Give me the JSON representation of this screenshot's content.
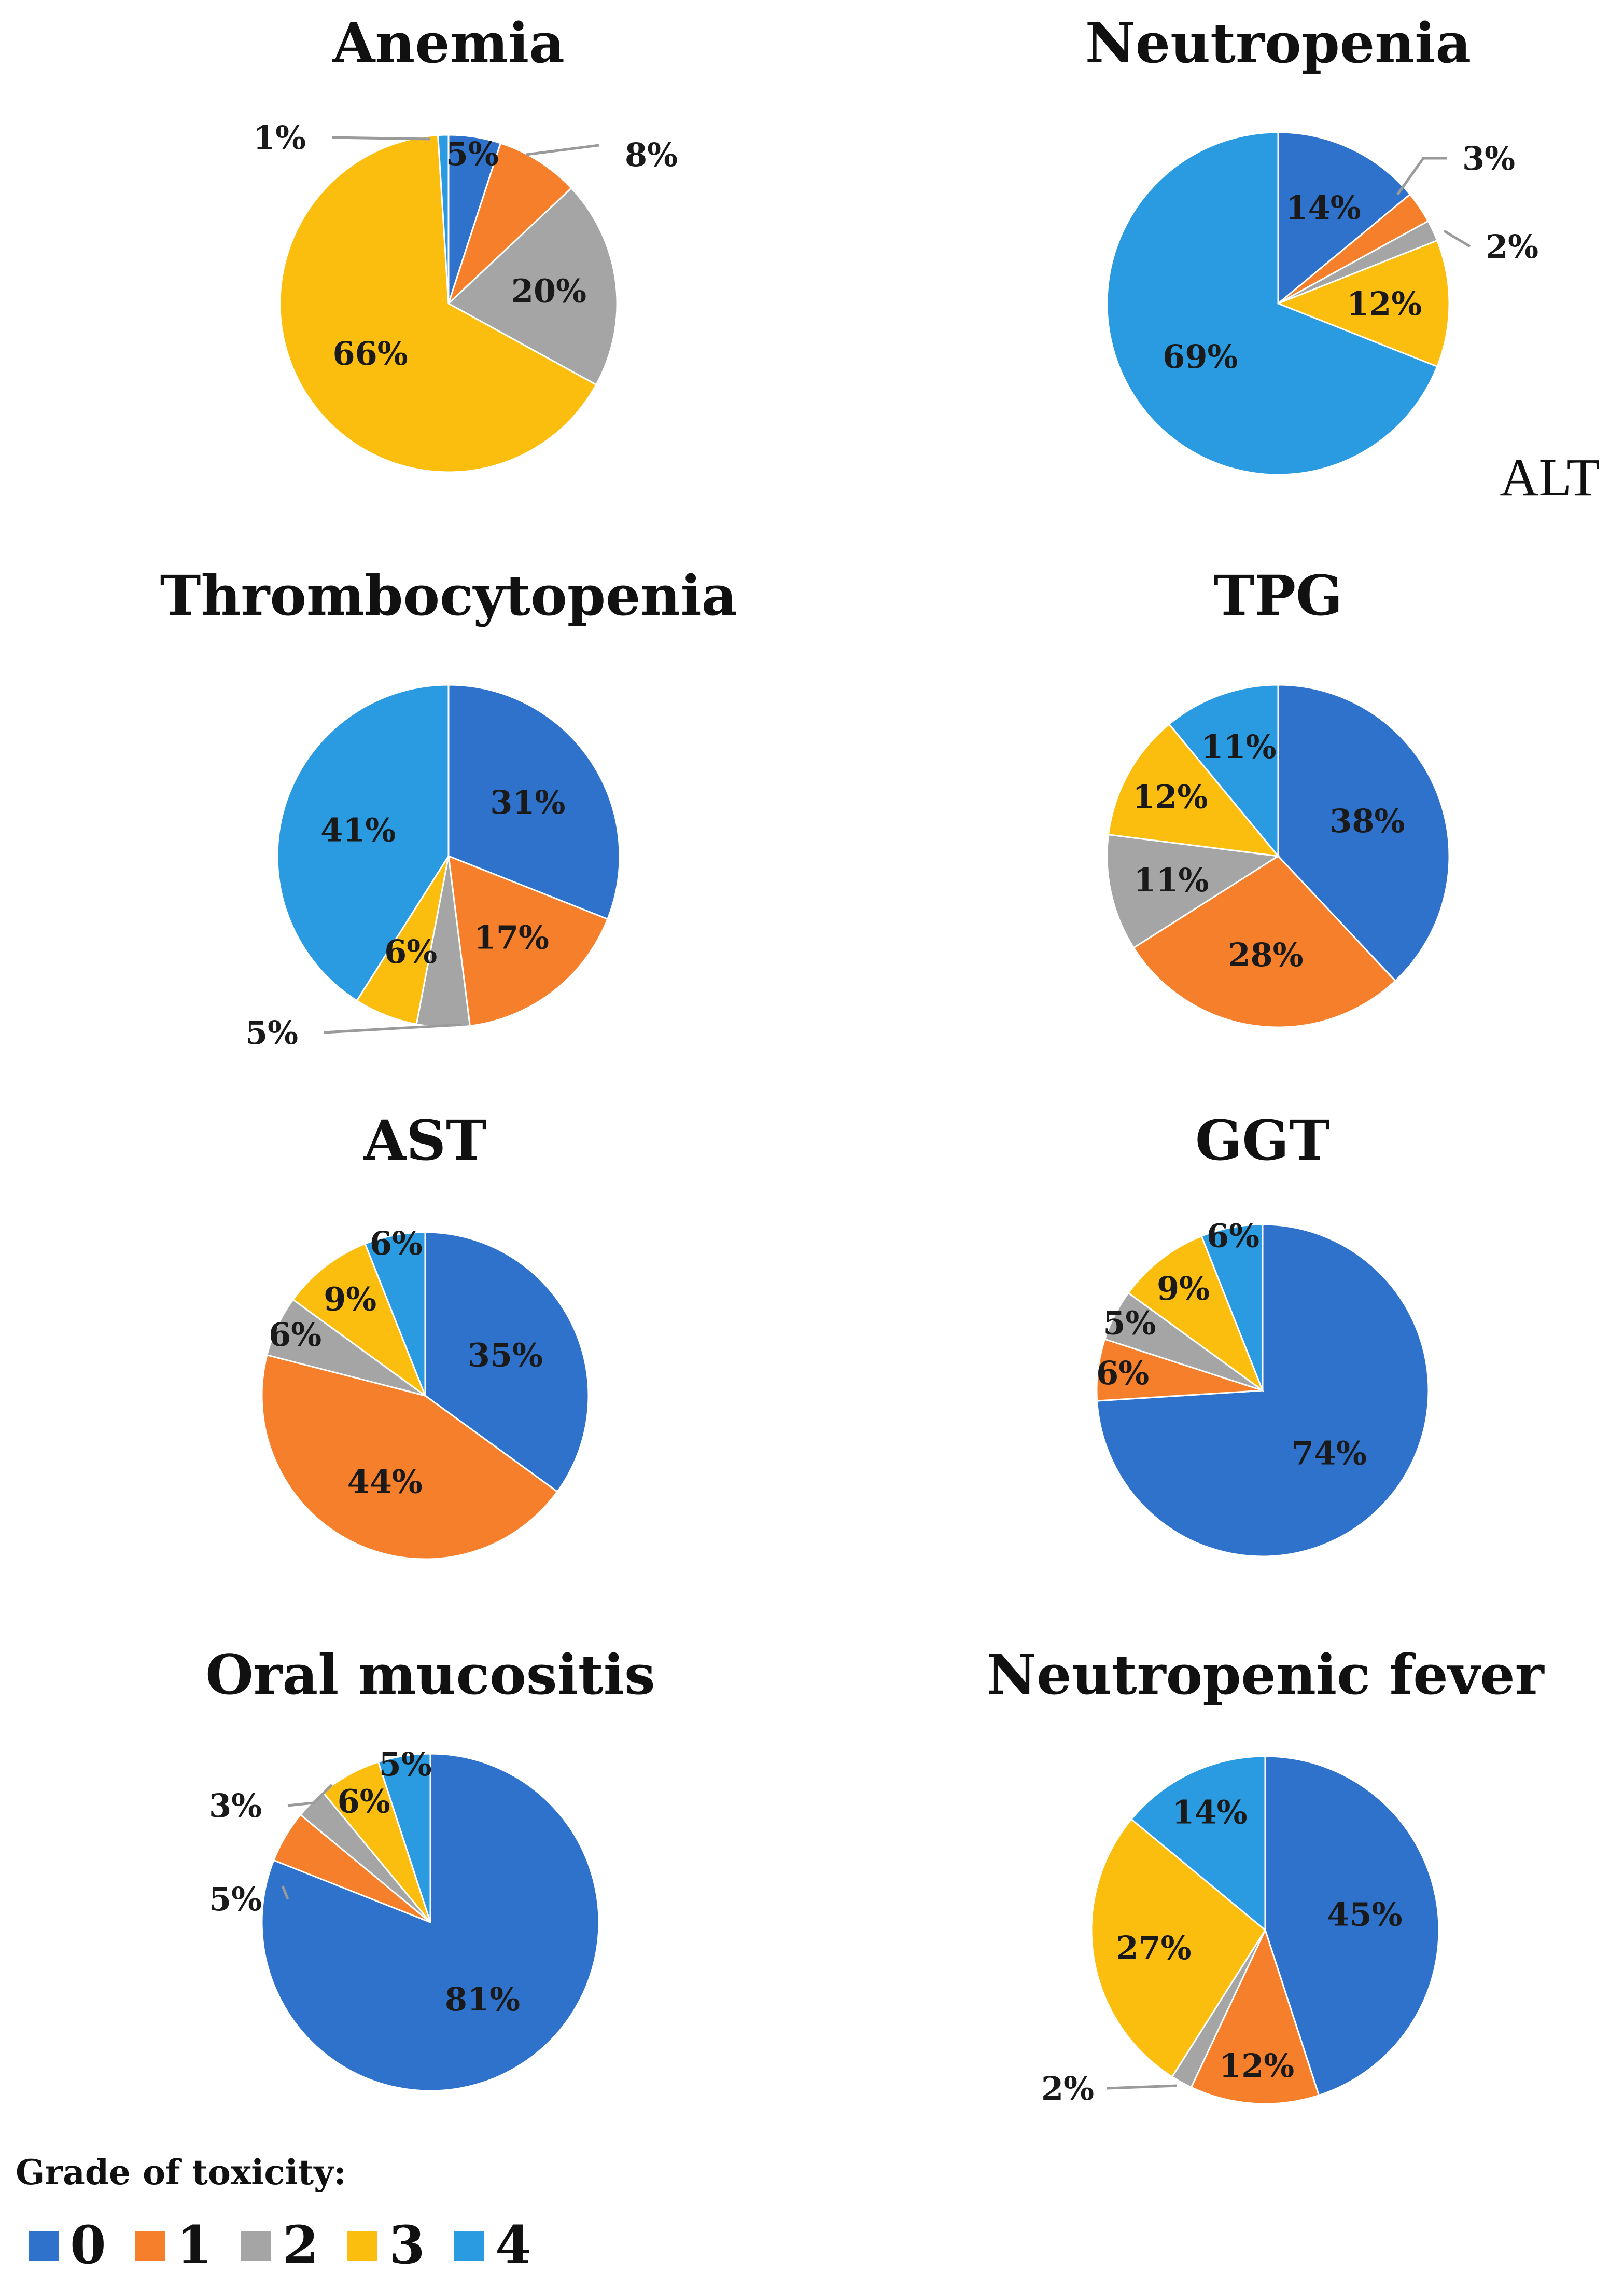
{
  "colors": {
    "grade_0": "#2f72cc",
    "grade_1": "#f57f2a",
    "grade_2": "#a5a5a5",
    "grade_3": "#fbbe0f",
    "grade_4": "#2a9be0"
  },
  "chart_data": [
    {
      "type": "pie",
      "title": "Anemia",
      "labels": [
        "0",
        "1",
        "2",
        "3",
        "4"
      ],
      "values": [
        5,
        8,
        20,
        66,
        1
      ],
      "value_labels": [
        "5%",
        "8%",
        "20%",
        "66%",
        "1%"
      ]
    },
    {
      "type": "pie",
      "title": "Neutropenia",
      "labels": [
        "0",
        "1",
        "2",
        "3",
        "4"
      ],
      "values": [
        14,
        3,
        2,
        12,
        69
      ],
      "value_labels": [
        "14%",
        "3%",
        "2%",
        "12%",
        "69%"
      ]
    },
    {
      "type": "pie",
      "title": "Thrombocytopenia",
      "labels": [
        "0",
        "1",
        "2",
        "3",
        "4"
      ],
      "values": [
        31,
        17,
        5,
        6,
        41
      ],
      "value_labels": [
        "31%",
        "17%",
        "5%",
        "6%",
        "41%"
      ]
    },
    {
      "type": "pie",
      "title": "TPG",
      "labels": [
        "0",
        "1",
        "2",
        "3",
        "4"
      ],
      "values": [
        38,
        28,
        11,
        12,
        11
      ],
      "value_labels": [
        "38%",
        "28%",
        "11%",
        "12%",
        "11%"
      ]
    },
    {
      "type": "pie",
      "title": "AST",
      "labels": [
        "0",
        "1",
        "2",
        "3",
        "4"
      ],
      "values": [
        35,
        44,
        6,
        9,
        6
      ],
      "value_labels": [
        "35%",
        "44%",
        "6%",
        "9%",
        "6%"
      ]
    },
    {
      "type": "pie",
      "title": "GGT",
      "labels": [
        "0",
        "1",
        "2",
        "3",
        "4"
      ],
      "values": [
        74,
        6,
        5,
        9,
        6
      ],
      "value_labels": [
        "74%",
        "6%",
        "5%",
        "9%",
        "6%"
      ]
    },
    {
      "type": "pie",
      "title": "Oral mucositis",
      "labels": [
        "0",
        "1",
        "2",
        "3",
        "4"
      ],
      "values": [
        81,
        5,
        3,
        6,
        5
      ],
      "value_labels": [
        "81%",
        "5%",
        "3%",
        "6%",
        "5%"
      ]
    },
    {
      "type": "pie",
      "title": "Neutropenic fever",
      "labels": [
        "0",
        "1",
        "2",
        "3",
        "4"
      ],
      "values": [
        45,
        12,
        2,
        27,
        14
      ],
      "value_labels": [
        "45%",
        "12%",
        "2%",
        "27%",
        "14%"
      ]
    }
  ],
  "extra_label": "ALT",
  "legend": {
    "title": "Grade of toxicity:",
    "position": "bottom-left",
    "items": [
      "0",
      "1",
      "2",
      "3",
      "4"
    ]
  }
}
